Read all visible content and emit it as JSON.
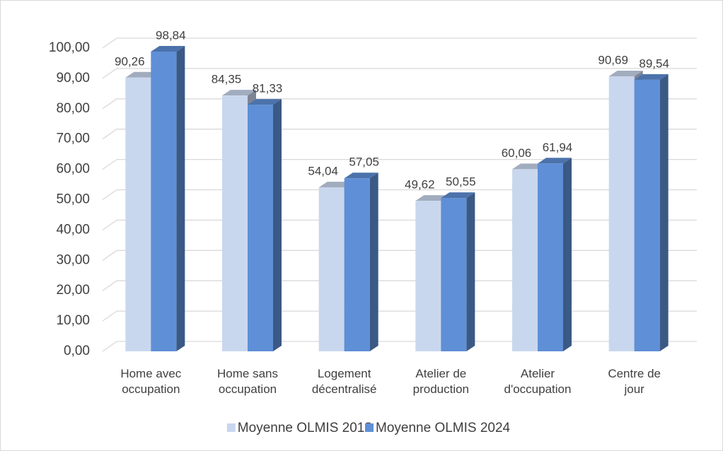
{
  "chart_data": {
    "type": "bar3d",
    "categories": [
      "Home avec\noccupation",
      "Home sans\noccupation",
      "Logement\ndécentralisé",
      "Atelier de\nproduction",
      "Atelier\nd'occupation",
      "Centre de\njour"
    ],
    "series": [
      {
        "name": "Moyenne OLMIS 2018",
        "color": "#c9d7ee",
        "values": [
          90.26,
          84.35,
          54.04,
          49.62,
          60.06,
          90.69
        ],
        "value_labels": [
          "90,26",
          "84,35",
          "54,04",
          "49,62",
          "60,06",
          "90,69"
        ]
      },
      {
        "name": "Moyenne OLMIS 2024",
        "color": "#5f8fd6",
        "values": [
          98.84,
          81.33,
          57.05,
          50.55,
          61.94,
          89.54
        ],
        "value_labels": [
          "98,84",
          "81,33",
          "57,05",
          "50,55",
          "61,94",
          "89,54"
        ]
      }
    ],
    "ylim": [
      0,
      100
    ],
    "yticks": [
      {
        "value": 0,
        "label": "0,00"
      },
      {
        "value": 10,
        "label": "10,00"
      },
      {
        "value": 20,
        "label": "20,00"
      },
      {
        "value": 30,
        "label": "30,00"
      },
      {
        "value": 40,
        "label": "40,00"
      },
      {
        "value": 50,
        "label": "50,00"
      },
      {
        "value": 60,
        "label": "60,00"
      },
      {
        "value": 70,
        "label": "70,00"
      },
      {
        "value": 80,
        "label": "80,00"
      },
      {
        "value": 90,
        "label": "90,00"
      },
      {
        "value": 100,
        "label": "100,00"
      }
    ],
    "grid": true,
    "legend": "bottom"
  }
}
